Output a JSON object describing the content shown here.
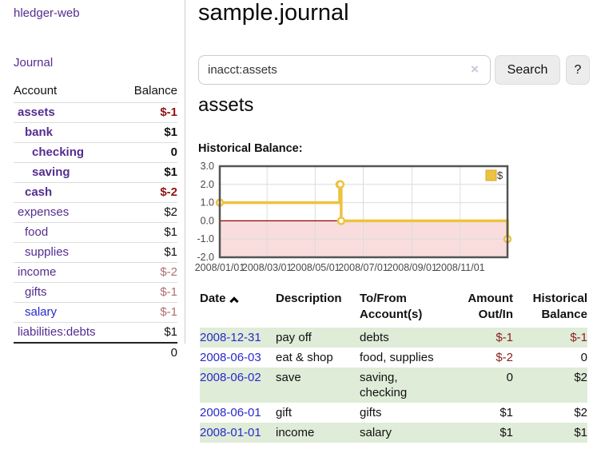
{
  "colors": {
    "link_purple": "#552d90",
    "link_blue": "#2929cc",
    "negative_strong": "#8f1414",
    "negative_soft": "#b06f6f",
    "row_shaded_green": "#dfecd8",
    "accent_gold": "#edc240"
  },
  "sidebar": {
    "app_title": "hledger-web",
    "nav_journal": "Journal",
    "accounts_table": {
      "headers": [
        "Account",
        "Balance"
      ],
      "rows": [
        {
          "account": "assets",
          "depth": 0,
          "balance": "$-1",
          "bold": true,
          "amount_class": "neg-strong"
        },
        {
          "account": "bank",
          "depth": 1,
          "balance": "$1",
          "bold": true,
          "amount_class": ""
        },
        {
          "account": "checking",
          "depth": 2,
          "balance": "0",
          "bold": true,
          "amount_class": ""
        },
        {
          "account": "saving",
          "depth": 2,
          "balance": "$1",
          "bold": true,
          "amount_class": ""
        },
        {
          "account": "cash",
          "depth": 1,
          "balance": "$-2",
          "bold": true,
          "amount_class": "neg-strong"
        },
        {
          "account": "expenses",
          "depth": 0,
          "balance": "$2",
          "bold": false,
          "amount_class": ""
        },
        {
          "account": "food",
          "depth": 1,
          "balance": "$1",
          "bold": false,
          "amount_class": ""
        },
        {
          "account": "supplies",
          "depth": 1,
          "balance": "$1",
          "bold": false,
          "amount_class": ""
        },
        {
          "account": "income",
          "depth": 0,
          "balance": "$-2",
          "bold": false,
          "amount_class": "neg-soft"
        },
        {
          "account": "gifts",
          "depth": 1,
          "balance": "$-1",
          "bold": false,
          "amount_class": "neg-soft"
        },
        {
          "account": "salary",
          "depth": 1,
          "balance": "$-1",
          "bold": false,
          "amount_class": "neg-soft",
          "unvisited": true
        },
        {
          "account": "liabilities:debts",
          "depth": 0,
          "balance": "$1",
          "bold": false,
          "amount_class": ""
        }
      ],
      "total": "0"
    }
  },
  "main": {
    "title": "sample.journal",
    "search": {
      "value": "inacct:assets",
      "clear_icon": "×",
      "search_button": "Search",
      "help_button": "?"
    },
    "account_heading": "assets",
    "section_label": "Historical Balance:",
    "register": {
      "headers": [
        "Date",
        "Description",
        "To/From Account(s)",
        "Amount Out/In",
        "Historical Balance"
      ],
      "sort": {
        "column": "Date",
        "direction": "asc"
      },
      "rows": [
        {
          "date": "2008-12-31",
          "description": "pay off",
          "accounts": "debts",
          "amount": "$-1",
          "amount_negative": true,
          "balance": "$-1",
          "balance_negative": true,
          "shaded": true
        },
        {
          "date": "2008-06-03",
          "description": "eat & shop",
          "accounts": "food, supplies",
          "amount": "$-2",
          "amount_negative": true,
          "balance": "0",
          "balance_negative": false,
          "shaded": false
        },
        {
          "date": "2008-06-02",
          "description": "save",
          "accounts": "saving, checking",
          "amount": "0",
          "amount_negative": false,
          "balance": "$2",
          "balance_negative": false,
          "shaded": true
        },
        {
          "date": "2008-06-01",
          "description": "gift",
          "accounts": "gifts",
          "amount": "$1",
          "amount_negative": false,
          "balance": "$2",
          "balance_negative": false,
          "shaded": false
        },
        {
          "date": "2008-01-01",
          "description": "income",
          "accounts": "salary",
          "amount": "$1",
          "amount_negative": false,
          "balance": "$1",
          "balance_negative": false,
          "shaded": true
        }
      ]
    }
  },
  "chart_data": {
    "type": "line",
    "title": "Historical Balance",
    "step": true,
    "x_range": [
      "2008-01-01",
      "2008-12-31"
    ],
    "x_ticks": [
      "2008/01/01",
      "2008/03/01",
      "2008/05/01",
      "2008/07/01",
      "2008/09/01",
      "2008/11/01"
    ],
    "y_ticks": [
      3.0,
      2.0,
      1.0,
      0.0,
      -1.0,
      -2.0
    ],
    "ylim": [
      -2,
      3
    ],
    "grid": true,
    "legend_position": "top-right",
    "series": [
      {
        "name": "$",
        "color": "#edc240",
        "points": [
          {
            "date": "2008-01-01",
            "value": 1
          },
          {
            "date": "2008-06-01",
            "value": 2
          },
          {
            "date": "2008-06-02",
            "value": 2
          },
          {
            "date": "2008-06-03",
            "value": 0
          },
          {
            "date": "2008-12-31",
            "value": -1
          }
        ]
      }
    ],
    "colors": {
      "negative_region": "#f9dddd",
      "zero_line": "#8b0000",
      "grid": "#dcdcdc",
      "border": "#545454"
    }
  }
}
